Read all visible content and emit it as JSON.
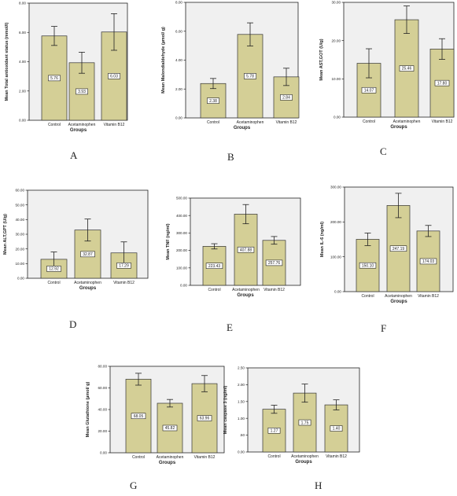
{
  "chart_data": [
    {
      "type": "bar",
      "panel": "A",
      "categories": [
        "Control",
        "Acetaminophen",
        "Vitamin B12"
      ],
      "values": [
        5.76,
        3.93,
        6.03
      ],
      "errors": [
        0.65,
        0.72,
        1.25
      ],
      "data_labels": [
        "5.76",
        "3.93",
        "6.03"
      ],
      "ylim": [
        0,
        8
      ],
      "yticks": [
        0,
        2,
        4,
        6,
        8
      ],
      "ytick_labels": [
        "0.00",
        "2.00",
        "4.00",
        "6.00",
        "8.00"
      ],
      "xlabel": "Groups",
      "ylabel": "Mean Total antioxidant status (mmol/l)",
      "grid": false
    },
    {
      "type": "bar",
      "panel": "B",
      "categories": [
        "Control",
        "Acetaminophen",
        "Vitamin B12"
      ],
      "values": [
        2.38,
        5.78,
        2.84
      ],
      "errors": [
        0.35,
        0.8,
        0.6
      ],
      "data_labels": [
        "2.38",
        "5.78",
        "2.84"
      ],
      "ylim": [
        0,
        8
      ],
      "yticks": [
        0,
        2,
        4,
        6,
        8
      ],
      "ytick_labels": [
        "0.00",
        "2.00",
        "4.00",
        "6.00",
        "8.00"
      ],
      "xlabel": "Groups",
      "ylabel": "Mean Malondialdehyde (µmol/ g)",
      "grid": false
    },
    {
      "type": "bar",
      "panel": "C",
      "categories": [
        "Control",
        "Acetaminophen",
        "Vitamin B12"
      ],
      "values": [
        14.07,
        25.46,
        17.8
      ],
      "errors": [
        3.8,
        3.6,
        2.7
      ],
      "data_labels": [
        "14.07",
        "25.46",
        "17.80"
      ],
      "ylim": [
        0,
        30
      ],
      "yticks": [
        0,
        10,
        20,
        30
      ],
      "ytick_labels": [
        "0.00",
        "10.00",
        "20.00",
        "30.00"
      ],
      "xlabel": "Groups",
      "ylabel": "Mean AST,GOT (U/g)",
      "grid": false
    },
    {
      "type": "bar",
      "panel": "D",
      "categories": [
        "Control",
        "Acetaminophen",
        "Vitamin B12"
      ],
      "values": [
        12.92,
        32.87,
        17.29
      ],
      "errors": [
        5.0,
        7.5,
        7.5
      ],
      "data_labels": [
        "12.92",
        "32.87",
        "17.29"
      ],
      "ylim": [
        0,
        60
      ],
      "yticks": [
        0,
        10,
        20,
        30,
        40,
        50,
        60
      ],
      "ytick_labels": [
        "0.00",
        "10.00",
        "20.00",
        "30.00",
        "40.00",
        "50.00",
        "60.00"
      ],
      "xlabel": "Groups",
      "ylabel": "Mean ALT,GPT (U/g)",
      "grid": false
    },
    {
      "type": "bar",
      "panel": "E",
      "categories": [
        "Control",
        "Acetaminophen",
        "Vitamin B12"
      ],
      "values": [
        223.43,
        407.88,
        257.76
      ],
      "errors": [
        15.0,
        55.0,
        22.0
      ],
      "data_labels": [
        "223.43",
        "407.88",
        "257.76"
      ],
      "ylim": [
        0,
        500
      ],
      "yticks": [
        0,
        100,
        200,
        300,
        400,
        500
      ],
      "ytick_labels": [
        "0.00",
        "100.00",
        "200.00",
        "300.00",
        "400.00",
        "500.00"
      ],
      "xlabel": "Groups",
      "ylabel": "Mean TNF (ng/ml)",
      "grid": false
    },
    {
      "type": "bar",
      "panel": "F",
      "categories": [
        "Control",
        "Acetaminophen",
        "Vitamin B12"
      ],
      "values": [
        150.1,
        247.19,
        174.03
      ],
      "errors": [
        18.0,
        35.0,
        16.0
      ],
      "data_labels": [
        "150.10",
        "247.19",
        "174.03"
      ],
      "ylim": [
        0,
        300
      ],
      "yticks": [
        0,
        100,
        200,
        300
      ],
      "ytick_labels": [
        "0.00",
        "100.00",
        "200.00",
        "300.00"
      ],
      "xlabel": "Groups",
      "ylabel": "Mean IL-6 (ng/ml)",
      "grid": false
    },
    {
      "type": "bar",
      "panel": "G",
      "categories": [
        "Control",
        "Acetaminophen",
        "Vitamin B12"
      ],
      "values": [
        68.05,
        45.82,
        63.96
      ],
      "errors": [
        5.5,
        3.5,
        7.5
      ],
      "data_labels": [
        "68.05",
        "45.82",
        "63.96"
      ],
      "ylim": [
        0,
        80
      ],
      "yticks": [
        0,
        20,
        40,
        60,
        80
      ],
      "ytick_labels": [
        "0.00",
        "20.00",
        "40.00",
        "60.00",
        "80.00"
      ],
      "xlabel": "Groups",
      "ylabel": "Mean Glutathione (µmol/ g)",
      "grid": false
    },
    {
      "type": "bar",
      "panel": "H",
      "categories": [
        "Control",
        "Acetaminophen",
        "Vitamin B12"
      ],
      "values": [
        1.27,
        1.75,
        1.4
      ],
      "errors": [
        0.12,
        0.27,
        0.15
      ],
      "data_labels": [
        "1.27",
        "1.75",
        "1.40"
      ],
      "ylim": [
        0,
        2.5
      ],
      "yticks": [
        0,
        0.5,
        1.0,
        1.5,
        2.0,
        2.5
      ],
      "ytick_labels": [
        "0.00",
        ".50",
        "1.00",
        "1.50",
        "2.00",
        "2.50"
      ],
      "xlabel": "Groups",
      "ylabel": "Mean caspase 3 (ng/ml)",
      "grid": false
    }
  ]
}
